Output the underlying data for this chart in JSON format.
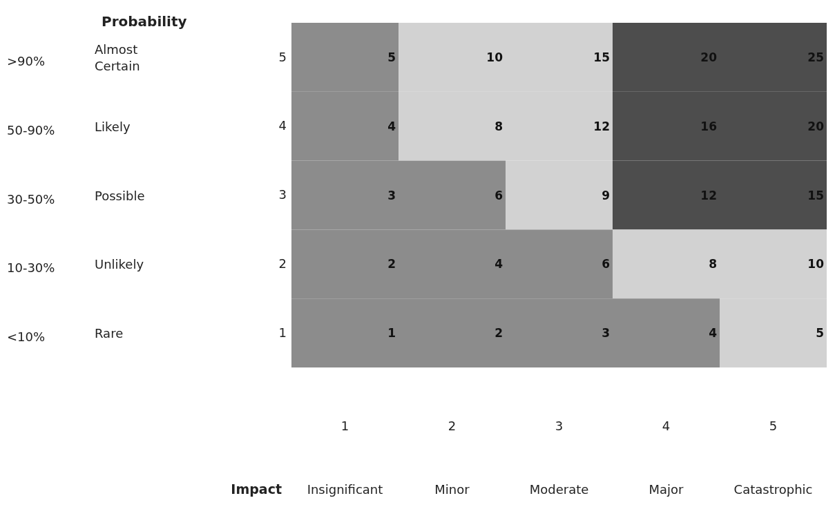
{
  "chart_data": {
    "type": "heatmap",
    "xlabel": "Impact",
    "categories": [
      "1",
      "2",
      "3",
      "4",
      "5"
    ],
    "y_categories": [
      "5",
      "4",
      "3",
      "2",
      "1"
    ],
    "y2_categories": [
      "Almost Certain",
      "Likely",
      "Possible",
      "Unlikely",
      "Rare"
    ],
    "cells": [
      [
        5,
        10,
        15,
        20,
        25
      ],
      [
        4,
        8,
        12,
        16,
        20
      ],
      [
        3,
        6,
        9,
        12,
        15
      ],
      [
        2,
        4,
        6,
        8,
        10
      ],
      [
        1,
        2,
        3,
        4,
        5
      ]
    ],
    "colors": [
      [
        "#8c8c8c",
        "#d2d2d2",
        "#d2d2d2",
        "#4d4d4d",
        "#4d4d4d"
      ],
      [
        "#8c8c8c",
        "#d2d2d2",
        "#d2d2d2",
        "#4d4d4d",
        "#4d4d4d"
      ],
      [
        "#8c8c8c",
        "#8c8c8c",
        "#d2d2d2",
        "#4d4d4d",
        "#4d4d4d"
      ],
      [
        "#8c8c8c",
        "#8c8c8c",
        "#8c8c8c",
        "#d2d2d2",
        "#d2d2d2"
      ],
      [
        "#8c8c8c",
        "#8c8c8c",
        "#8c8c8c",
        "#8c8c8c",
        "#d2d2d2"
      ]
    ],
    "data_labels": true,
    "annotations": [
      "Probability",
      ">90%",
      "50-90%",
      "30-50%",
      "10-30%",
      "<10%",
      "Insignificant",
      "Minor",
      "Moderate",
      "Major",
      "Catastrophic"
    ]
  }
}
